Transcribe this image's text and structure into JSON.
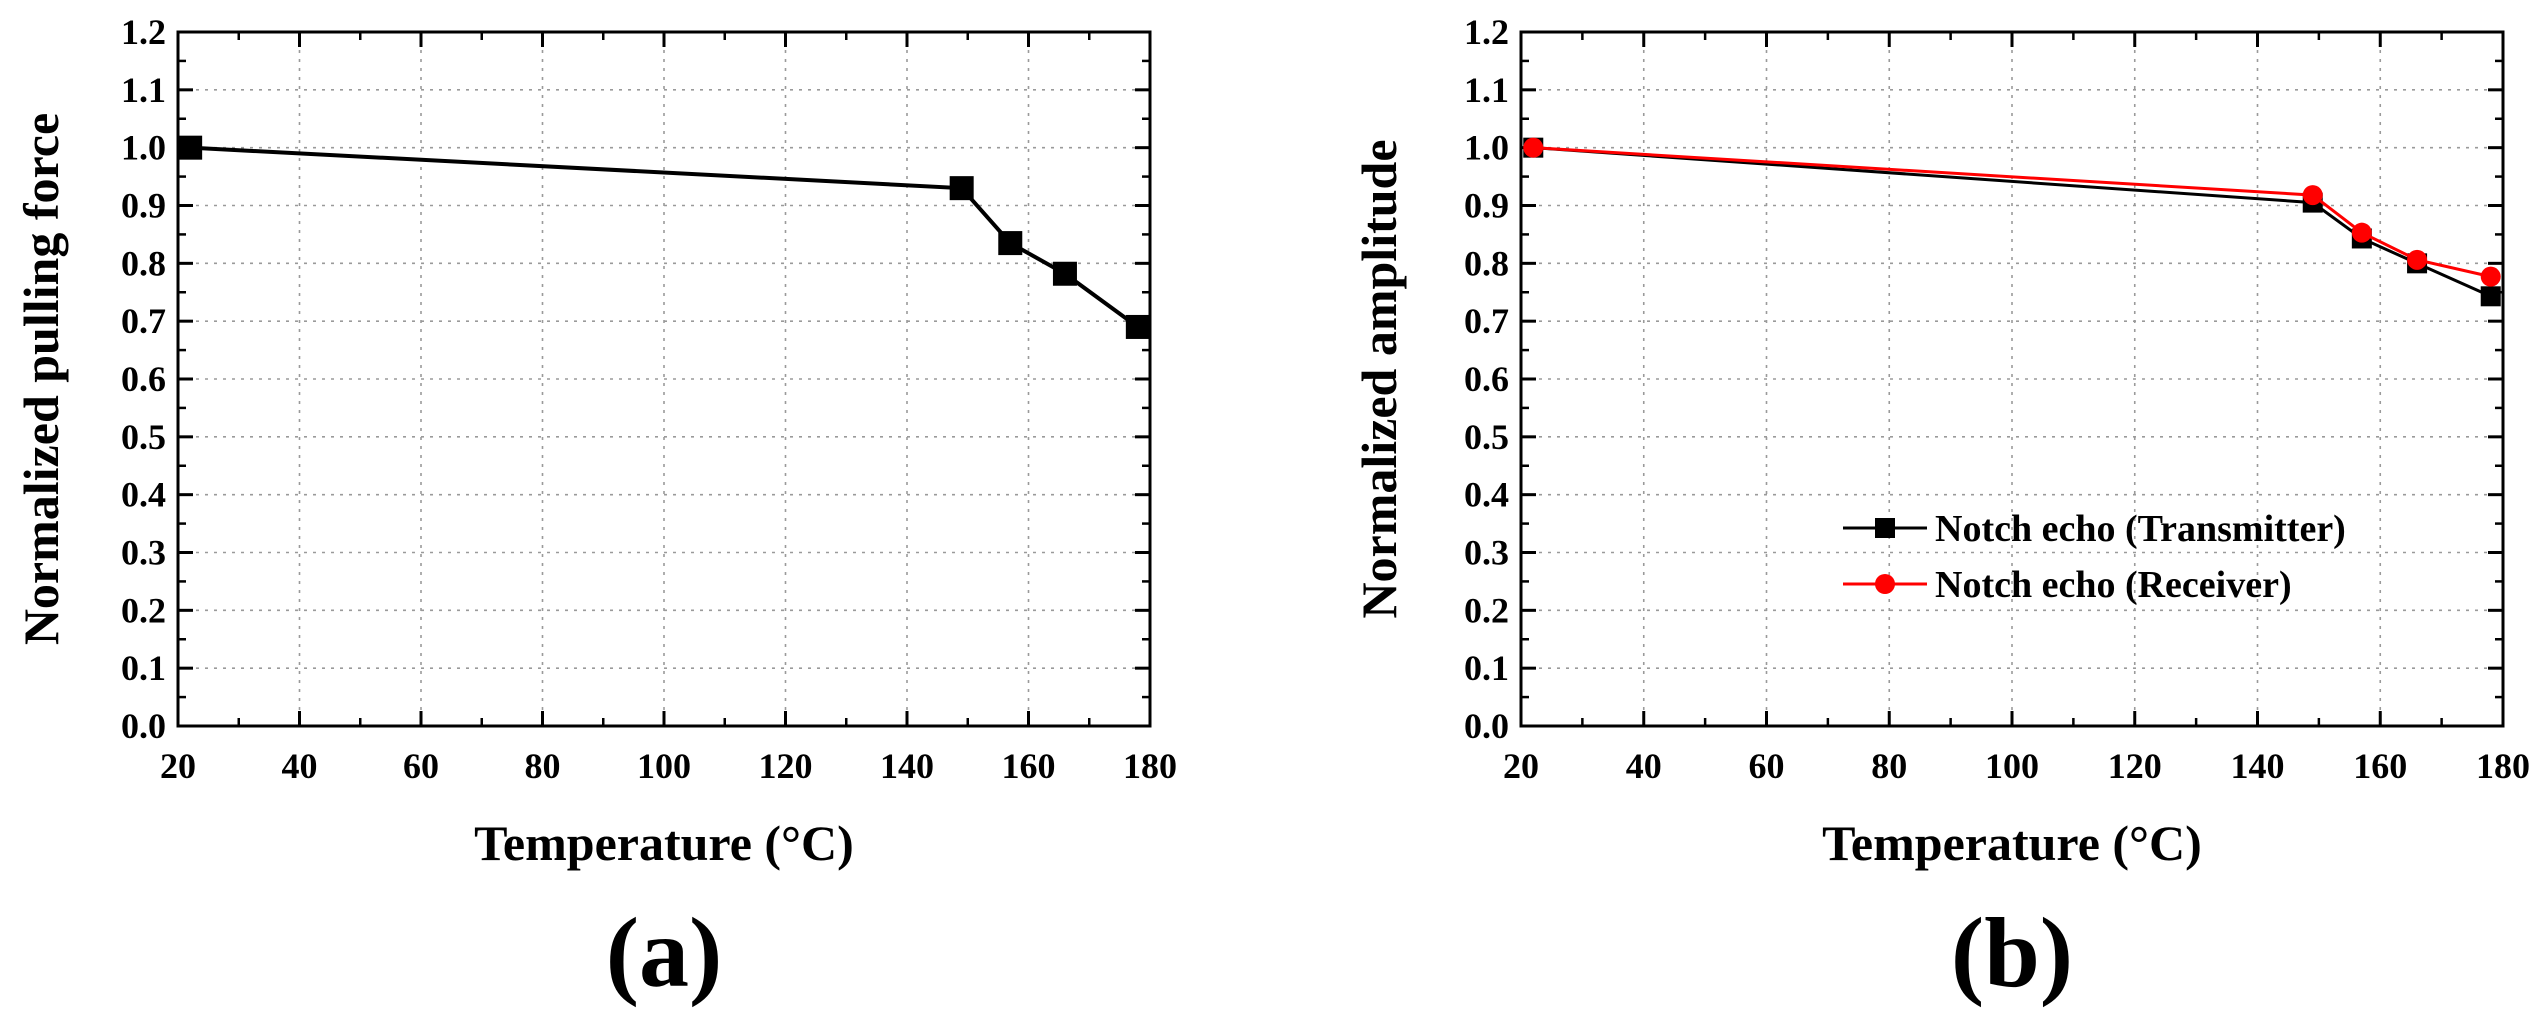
{
  "chart_data": [
    {
      "type": "line",
      "panel_label": "(a)",
      "xlabel": "Temperature (°C)",
      "ylabel": "Normalized pulling force",
      "xlim": [
        20,
        180
      ],
      "ylim": [
        0.0,
        1.2
      ],
      "xticks": [
        20,
        40,
        60,
        80,
        100,
        120,
        140,
        160,
        180
      ],
      "yticks": [
        "0.0",
        "0.1",
        "0.2",
        "0.3",
        "0.4",
        "0.5",
        "0.6",
        "0.7",
        "0.8",
        "0.9",
        "1.0",
        "1.1",
        "1.2"
      ],
      "grid": true,
      "legend": null,
      "series": [
        {
          "name": "",
          "color": "#000000",
          "marker": "square",
          "x": [
            22,
            149,
            157,
            166,
            178
          ],
          "y": [
            1.0,
            0.93,
            0.835,
            0.782,
            0.69
          ]
        }
      ]
    },
    {
      "type": "line",
      "panel_label": "(b)",
      "xlabel": "Temperature (°C)",
      "ylabel": "Normalized amplitude",
      "xlim": [
        20,
        180
      ],
      "ylim": [
        0.0,
        1.2
      ],
      "xticks": [
        20,
        40,
        60,
        80,
        100,
        120,
        140,
        160,
        180
      ],
      "yticks": [
        "0.0",
        "0.1",
        "0.2",
        "0.3",
        "0.4",
        "0.5",
        "0.6",
        "0.7",
        "0.8",
        "0.9",
        "1.0",
        "1.1",
        "1.2"
      ],
      "grid": true,
      "legend": "center-right",
      "series": [
        {
          "name": "Notch echo (Transmitter)",
          "color": "#000000",
          "marker": "square",
          "x": [
            22,
            149,
            157,
            166,
            178
          ],
          "y": [
            1.0,
            0.905,
            0.843,
            0.8,
            0.743
          ]
        },
        {
          "name": "Notch echo (Receiver)",
          "color": "#ff0000",
          "marker": "circle",
          "x": [
            22,
            149,
            157,
            166,
            178
          ],
          "y": [
            1.0,
            0.918,
            0.853,
            0.806,
            0.777
          ]
        }
      ]
    }
  ]
}
